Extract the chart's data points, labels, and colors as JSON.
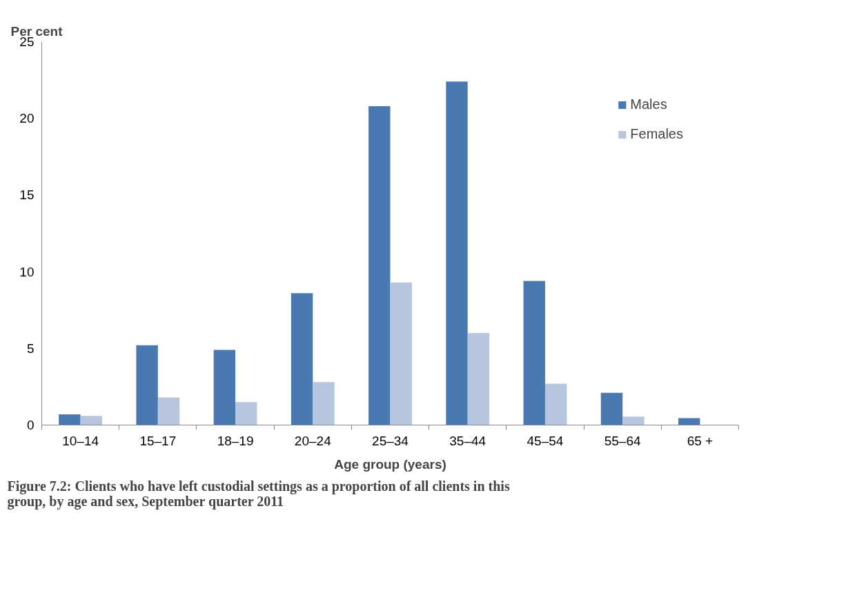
{
  "chart_data": {
    "type": "bar",
    "title": "Figure 7.2: Clients who have left custodial settings as a proportion of all clients in this group, by age and sex, September quarter 2011",
    "xlabel": "Age group (years)",
    "ylabel": "Per cent",
    "categories": [
      "10–14",
      "15–17",
      "18–19",
      "20–24",
      "25–34",
      "35–44",
      "45–54",
      "55–64",
      "65 +"
    ],
    "series": [
      {
        "name": "Males",
        "color": "#4a78b0",
        "values": [
          0.7,
          5.2,
          4.9,
          8.6,
          20.8,
          22.4,
          9.4,
          2.1,
          0.45
        ]
      },
      {
        "name": "Females",
        "color": "#b8c5de",
        "values": [
          0.6,
          1.8,
          1.5,
          2.8,
          9.3,
          6.0,
          2.7,
          0.55,
          0
        ]
      }
    ],
    "ylim": [
      0,
      25
    ],
    "yticks": [
      0,
      5,
      10,
      15,
      20,
      25
    ],
    "grid": false,
    "legend": "top right"
  }
}
